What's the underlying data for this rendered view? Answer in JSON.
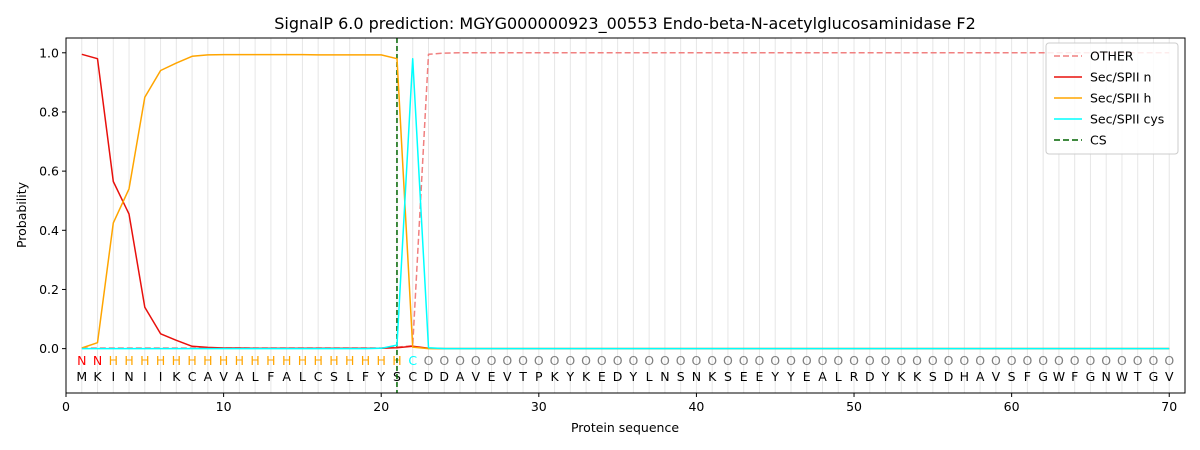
{
  "chart_data": {
    "type": "line",
    "title": "SignalP 6.0 prediction: MGYG000000923_00553 Endo-beta-N-acetylglucosaminidase F2",
    "xlabel": "Protein sequence",
    "ylabel": "Probability",
    "xlim": [
      0,
      71
    ],
    "ylim": [
      -0.15,
      1.05
    ],
    "xticks": [
      0,
      10,
      20,
      30,
      40,
      50,
      60,
      70
    ],
    "yticks": [
      0.0,
      0.2,
      0.4,
      0.6,
      0.8,
      1.0
    ],
    "legend_position": "top-right",
    "sequence": [
      "M",
      "K",
      "I",
      "N",
      "I",
      "I",
      "K",
      "C",
      "A",
      "V",
      "A",
      "L",
      "F",
      "A",
      "L",
      "C",
      "S",
      "L",
      "F",
      "Y",
      "S",
      "C",
      "D",
      "D",
      "A",
      "V",
      "E",
      "V",
      "T",
      "P",
      "K",
      "Y",
      "K",
      "E",
      "D",
      "Y",
      "L",
      "N",
      "S",
      "N",
      "K",
      "S",
      "E",
      "E",
      "Y",
      "Y",
      "E",
      "A",
      "L",
      "R",
      "D",
      "Y",
      "K",
      "K",
      "S",
      "D",
      "H",
      "A",
      "V",
      "S",
      "F",
      "G",
      "W",
      "F",
      "G",
      "N",
      "W",
      "T",
      "G",
      "V"
    ],
    "annotations": [
      "N",
      "N",
      "H",
      "H",
      "H",
      "H",
      "H",
      "H",
      "H",
      "H",
      "H",
      "H",
      "H",
      "H",
      "H",
      "H",
      "H",
      "H",
      "H",
      "H",
      "H",
      "C",
      "O",
      "O",
      "O",
      "O",
      "O",
      "O",
      "O",
      "O",
      "O",
      "O",
      "O",
      "O",
      "O",
      "O",
      "O",
      "O",
      "O",
      "O",
      "O",
      "O",
      "O",
      "O",
      "O",
      "O",
      "O",
      "O",
      "O",
      "O",
      "O",
      "O",
      "O",
      "O",
      "O",
      "O",
      "O",
      "O",
      "O",
      "O",
      "O",
      "O",
      "O",
      "O",
      "O",
      "O",
      "O",
      "O",
      "O",
      "O",
      "O"
    ],
    "annotation_colors": {
      "N": "#ff0000",
      "H": "#ffa500",
      "C": "#00ffff",
      "O": "#808080"
    },
    "cleavage_site": 21,
    "series": [
      {
        "name": "OTHER",
        "color": "#f08080",
        "dash": "dashed",
        "x": [
          1,
          2,
          3,
          4,
          5,
          6,
          7,
          8,
          9,
          10,
          11,
          12,
          13,
          14,
          15,
          16,
          17,
          18,
          19,
          20,
          21,
          22,
          23,
          24,
          25,
          26,
          27,
          28,
          29,
          30,
          31,
          32,
          33,
          34,
          35,
          36,
          37,
          38,
          39,
          40,
          41,
          42,
          43,
          44,
          45,
          46,
          47,
          48,
          49,
          50,
          51,
          52,
          53,
          54,
          55,
          56,
          57,
          58,
          59,
          60,
          61,
          62,
          63,
          64,
          65,
          66,
          67,
          68,
          69,
          70
        ],
        "values": [
          0.002,
          0.002,
          0.002,
          0.002,
          0.002,
          0.002,
          0.002,
          0.002,
          0.002,
          0.002,
          0.002,
          0.002,
          0.002,
          0.002,
          0.002,
          0.002,
          0.002,
          0.002,
          0.002,
          0.002,
          0.005,
          0.01,
          0.995,
          0.999,
          1.0,
          1.0,
          1.0,
          1.0,
          1.0,
          1.0,
          1.0,
          1.0,
          1.0,
          1.0,
          1.0,
          1.0,
          1.0,
          1.0,
          1.0,
          1.0,
          1.0,
          1.0,
          1.0,
          1.0,
          1.0,
          1.0,
          1.0,
          1.0,
          1.0,
          1.0,
          1.0,
          1.0,
          1.0,
          1.0,
          1.0,
          1.0,
          1.0,
          1.0,
          1.0,
          1.0,
          1.0,
          1.0,
          1.0,
          1.0,
          1.0,
          1.0,
          1.0,
          1.0,
          1.0,
          1.0
        ]
      },
      {
        "name": "Sec/SPII n",
        "color": "#e8100c",
        "dash": "solid",
        "x": [
          1,
          2,
          3,
          4,
          5,
          6,
          7,
          8,
          9,
          10,
          11,
          12,
          13,
          14,
          15,
          16,
          17,
          18,
          19,
          20,
          21,
          22,
          23,
          24,
          25,
          26,
          27,
          28,
          29,
          30,
          31,
          32,
          33,
          34,
          35,
          36,
          37,
          38,
          39,
          40,
          41,
          42,
          43,
          44,
          45,
          46,
          47,
          48,
          49,
          50,
          51,
          52,
          53,
          54,
          55,
          56,
          57,
          58,
          59,
          60,
          61,
          62,
          63,
          64,
          65,
          66,
          67,
          68,
          69,
          70
        ],
        "values": [
          0.995,
          0.98,
          0.565,
          0.455,
          0.14,
          0.05,
          0.028,
          0.008,
          0.004,
          0.002,
          0.002,
          0.001,
          0.001,
          0.001,
          0.001,
          0.001,
          0.001,
          0.001,
          0.001,
          0.001,
          0.003,
          0.008,
          0.001,
          0.0,
          0.0,
          0.0,
          0.0,
          0.0,
          0.0,
          0.0,
          0.0,
          0.0,
          0.0,
          0.0,
          0.0,
          0.0,
          0.0,
          0.0,
          0.0,
          0.0,
          0.0,
          0.0,
          0.0,
          0.0,
          0.0,
          0.0,
          0.0,
          0.0,
          0.0,
          0.0,
          0.0,
          0.0,
          0.0,
          0.0,
          0.0,
          0.0,
          0.0,
          0.0,
          0.0,
          0.0,
          0.0,
          0.0,
          0.0,
          0.0,
          0.0,
          0.0,
          0.0,
          0.0,
          0.0,
          0.0
        ]
      },
      {
        "name": "Sec/SPII h",
        "color": "#ffa500",
        "dash": "solid",
        "x": [
          1,
          2,
          3,
          4,
          5,
          6,
          7,
          8,
          9,
          10,
          11,
          12,
          13,
          14,
          15,
          16,
          17,
          18,
          19,
          20,
          21,
          22,
          23,
          24,
          25,
          26,
          27,
          28,
          29,
          30,
          31,
          32,
          33,
          34,
          35,
          36,
          37,
          38,
          39,
          40,
          41,
          42,
          43,
          44,
          45,
          46,
          47,
          48,
          49,
          50,
          51,
          52,
          53,
          54,
          55,
          56,
          57,
          58,
          59,
          60,
          61,
          62,
          63,
          64,
          65,
          66,
          67,
          68,
          69,
          70
        ],
        "values": [
          0.002,
          0.02,
          0.425,
          0.54,
          0.85,
          0.94,
          0.965,
          0.988,
          0.993,
          0.994,
          0.994,
          0.994,
          0.994,
          0.994,
          0.994,
          0.993,
          0.993,
          0.993,
          0.993,
          0.993,
          0.98,
          0.005,
          0.0,
          0.0,
          0.0,
          0.0,
          0.0,
          0.0,
          0.0,
          0.0,
          0.0,
          0.0,
          0.0,
          0.0,
          0.0,
          0.0,
          0.0,
          0.0,
          0.0,
          0.0,
          0.0,
          0.0,
          0.0,
          0.0,
          0.0,
          0.0,
          0.0,
          0.0,
          0.0,
          0.0,
          0.0,
          0.0,
          0.0,
          0.0,
          0.0,
          0.0,
          0.0,
          0.0,
          0.0,
          0.0,
          0.0,
          0.0,
          0.0,
          0.0,
          0.0,
          0.0,
          0.0,
          0.0,
          0.0,
          0.0
        ]
      },
      {
        "name": "Sec/SPII cys",
        "color": "#00ffff",
        "dash": "solid",
        "x": [
          1,
          2,
          3,
          4,
          5,
          6,
          7,
          8,
          9,
          10,
          11,
          12,
          13,
          14,
          15,
          16,
          17,
          18,
          19,
          20,
          21,
          22,
          23,
          24,
          25,
          26,
          27,
          28,
          29,
          30,
          31,
          32,
          33,
          34,
          35,
          36,
          37,
          38,
          39,
          40,
          41,
          42,
          43,
          44,
          45,
          46,
          47,
          48,
          49,
          50,
          51,
          52,
          53,
          54,
          55,
          56,
          57,
          58,
          59,
          60,
          61,
          62,
          63,
          64,
          65,
          66,
          67,
          68,
          69,
          70
        ],
        "values": [
          0.0,
          0.0,
          0.0,
          0.0,
          0.0,
          0.0,
          0.0,
          0.0,
          0.0,
          0.0,
          0.0,
          0.0,
          0.0,
          0.0,
          0.0,
          0.0,
          0.0,
          0.0,
          0.0,
          0.001,
          0.012,
          0.98,
          0.003,
          0.0,
          0.0,
          0.0,
          0.0,
          0.0,
          0.0,
          0.0,
          0.0,
          0.0,
          0.0,
          0.0,
          0.0,
          0.0,
          0.0,
          0.0,
          0.0,
          0.0,
          0.0,
          0.0,
          0.0,
          0.0,
          0.0,
          0.0,
          0.0,
          0.0,
          0.0,
          0.0,
          0.0,
          0.0,
          0.0,
          0.0,
          0.0,
          0.0,
          0.0,
          0.0,
          0.0,
          0.0,
          0.0,
          0.0,
          0.0,
          0.0,
          0.0,
          0.0,
          0.0,
          0.0,
          0.0,
          0.0
        ]
      }
    ],
    "cs_legend": {
      "name": "CS",
      "color": "#006400",
      "dash": "dashed"
    }
  }
}
